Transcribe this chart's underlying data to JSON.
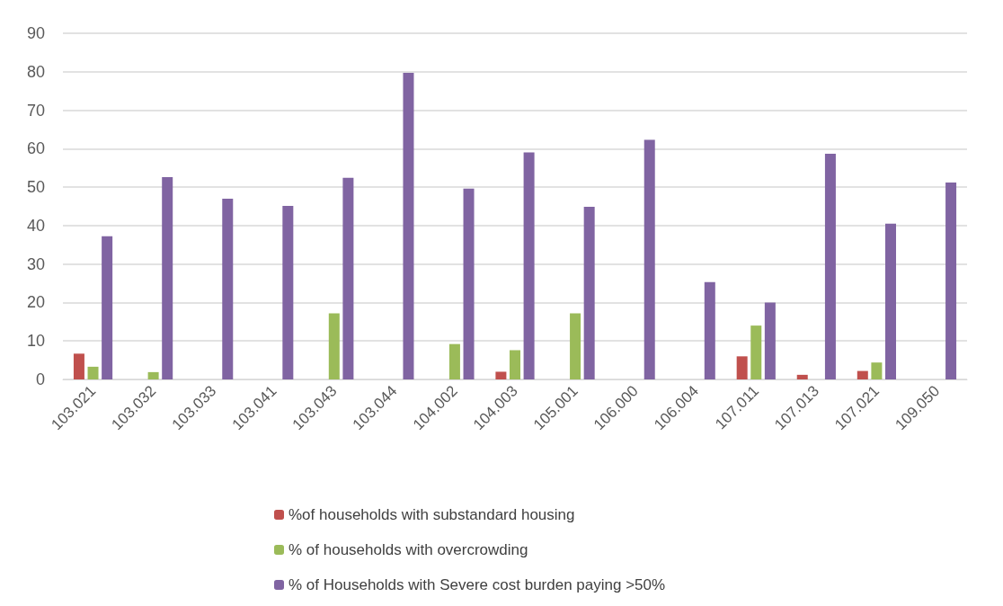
{
  "chart_data": {
    "type": "bar",
    "categories": [
      "103.021",
      "103.032",
      "103.033",
      "103.041",
      "103.043",
      "103.044",
      "104.002",
      "104.003",
      "105.001",
      "106.000",
      "106.004",
      "107.011",
      "107.013",
      "107.021",
      "109.050"
    ],
    "series": [
      {
        "name": "%of households with substandard housing",
        "color": "#c0504d",
        "values": [
          6.7,
          null,
          null,
          null,
          null,
          null,
          null,
          2.0,
          null,
          null,
          null,
          6.0,
          1.2,
          2.2,
          null
        ]
      },
      {
        "name": "% of households with overcrowding",
        "color": "#9bbb59",
        "values": [
          3.3,
          1.9,
          null,
          null,
          17.2,
          null,
          9.2,
          7.6,
          17.2,
          null,
          null,
          14.0,
          null,
          4.4,
          null
        ]
      },
      {
        "name": "% of Households with Severe cost burden paying >50%",
        "color": "#8064a2",
        "values": [
          37.2,
          52.6,
          47.0,
          45.1,
          52.4,
          79.7,
          49.6,
          59.0,
          44.9,
          62.3,
          25.3,
          20.0,
          58.7,
          40.5,
          51.2
        ]
      }
    ],
    "ylim": [
      0,
      90
    ],
    "yticks": [
      0,
      10,
      20,
      30,
      40,
      50,
      60,
      70,
      80,
      90
    ],
    "grid": "y",
    "legend": "bottom"
  }
}
